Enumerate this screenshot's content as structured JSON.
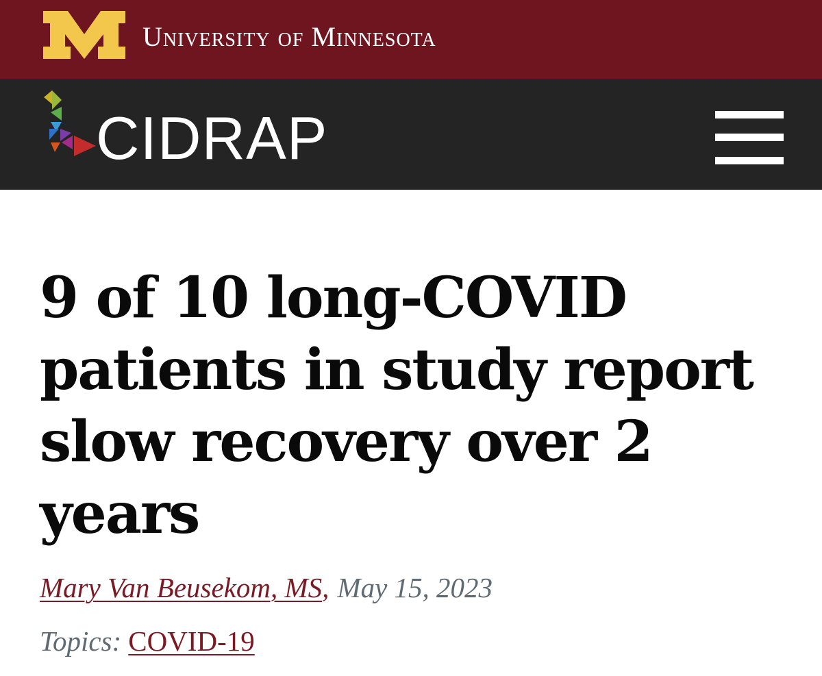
{
  "university": {
    "name": "University of Minnesota",
    "logo_icon": "block-m-logo",
    "bar_color": "#6e1520",
    "logo_color": "#f3c74c"
  },
  "site": {
    "name": "CIDRAP",
    "logo_icon": "cidrap-geometric-mark",
    "bar_color": "#242424",
    "menu_icon": "hamburger-menu-icon"
  },
  "article": {
    "title": "9 of 10 long-COVID patients in study report slow recovery over 2 years",
    "author": "Mary Van Beusekom, MS",
    "author_separator": ",",
    "date": "May 15, 2023",
    "topics_label": "Topics:",
    "topics": [
      "COVID-19"
    ]
  },
  "colors": {
    "link": "#7a1a25",
    "meta_text": "#5f6b73",
    "headline_text": "#0a0a0a"
  }
}
